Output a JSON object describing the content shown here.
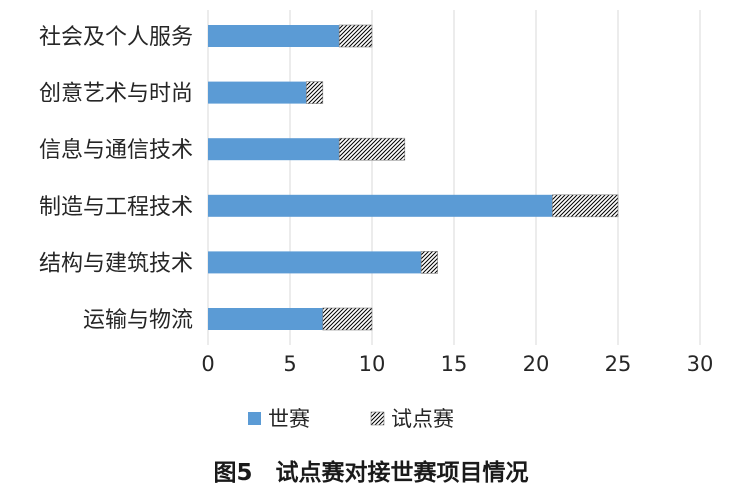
{
  "chart_data": {
    "type": "bar",
    "orientation": "horizontal",
    "stacked": true,
    "categories": [
      "社会及个人服务",
      "创意艺术与时尚",
      "信息与通信技术",
      "制造与工程技术",
      "结构与建筑技术",
      "运输与物流"
    ],
    "series": [
      {
        "name": "世赛",
        "values": [
          8,
          6,
          8,
          21,
          13,
          7
        ],
        "color": "#5b9bd5",
        "pattern": "solid"
      },
      {
        "name": "试点赛",
        "values": [
          2,
          1,
          4,
          4,
          1,
          3
        ],
        "color": "#000000",
        "pattern": "hatch"
      }
    ],
    "x_ticks": [
      "0",
      "5",
      "10",
      "15",
      "20",
      "25",
      "30"
    ],
    "xlim": [
      0,
      30
    ],
    "grid": "vertical",
    "legend_position": "bottom",
    "caption": "图5　试点赛对接世赛项目情况"
  }
}
